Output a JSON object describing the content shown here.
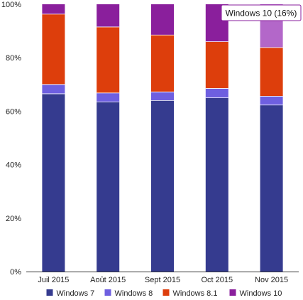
{
  "chart_data": {
    "type": "bar",
    "stacked": true,
    "normalized_percent": true,
    "categories": [
      "Juil 2015",
      "Août 2015",
      "Sept 2015",
      "Oct 2015",
      "Nov 2015"
    ],
    "series": [
      {
        "name": "Windows 7",
        "color": "#353B8F",
        "values": [
          66.5,
          63.5,
          64.0,
          65.0,
          62.3
        ]
      },
      {
        "name": "Windows 8",
        "color": "#6E5FE0",
        "values": [
          3.5,
          3.3,
          3.2,
          3.5,
          3.3
        ]
      },
      {
        "name": "Windows 8.1",
        "color": "#DD3E0C",
        "values": [
          26.3,
          24.7,
          21.3,
          17.5,
          18.2
        ]
      },
      {
        "name": "Windows 10",
        "color": "#8A1F9C",
        "values": [
          3.7,
          8.5,
          11.5,
          14.0,
          16.2
        ]
      }
    ],
    "title": "",
    "xlabel": "",
    "ylabel": "",
    "ylim": [
      0,
      100
    ],
    "yticks": [
      "0%",
      "20%",
      "40%",
      "60%",
      "80%",
      "100%"
    ],
    "ytick_values": [
      0,
      20,
      40,
      60,
      80,
      100
    ],
    "grid": false,
    "legend_position": "bottom",
    "highlight": {
      "category_index": 4,
      "series_index": 3,
      "color": "#B367C9"
    },
    "tooltip": {
      "text": "Windows 10 (16%)"
    }
  }
}
